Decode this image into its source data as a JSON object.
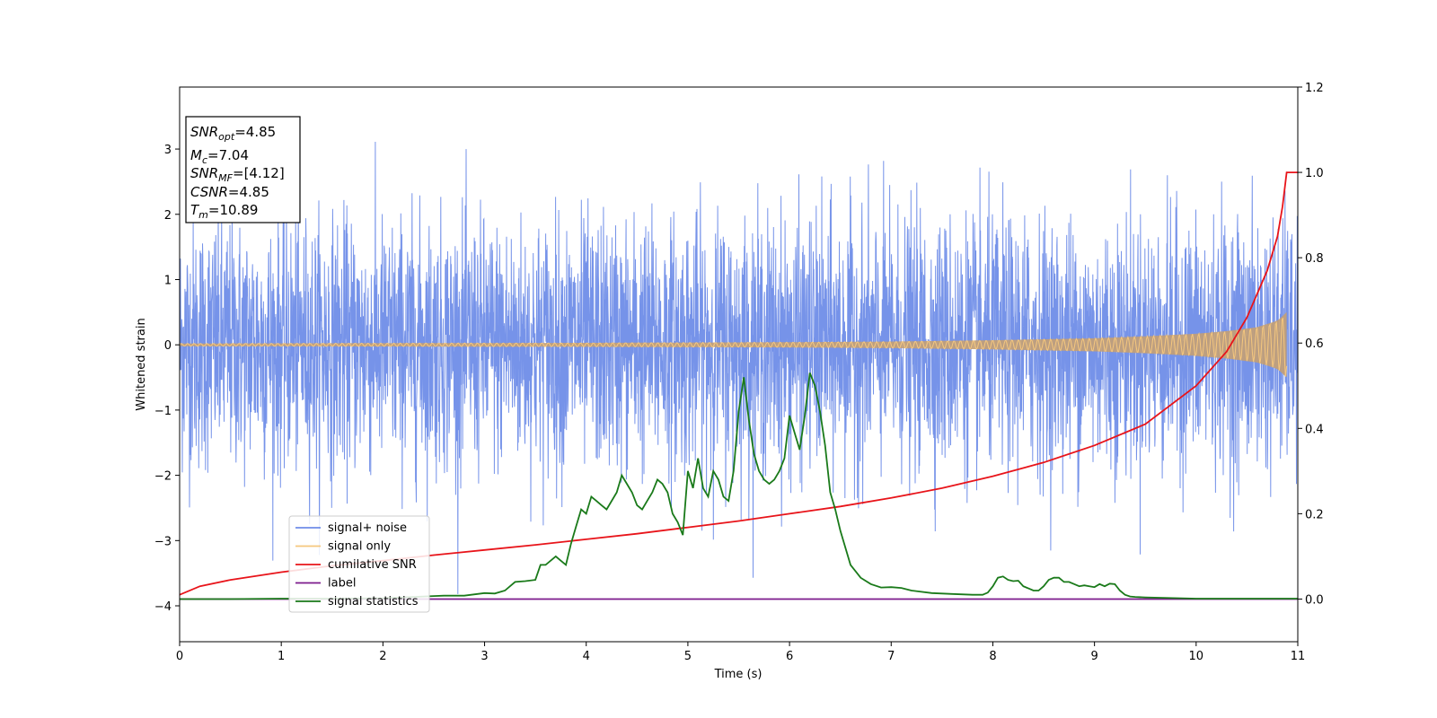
{
  "chart_data": {
    "type": "line",
    "xlabel": "Time (s)",
    "ylabel": "Whitened strain",
    "xlim": [
      0,
      11
    ],
    "ylim": [
      -4.55,
      3.95
    ],
    "y2lim": [
      -0.1,
      1.2
    ],
    "xticks": [
      "0",
      "1",
      "2",
      "3",
      "4",
      "5",
      "6",
      "7",
      "8",
      "9",
      "10",
      "11"
    ],
    "yticks": [
      "3",
      "2",
      "1",
      "0",
      "−1",
      "−2",
      "−3",
      "−4"
    ],
    "y2ticks": [
      "1.2",
      "1.0",
      "0.8",
      "0.6",
      "0.4",
      "0.2",
      "0.0"
    ],
    "legend_position": "lower-left",
    "colors": {
      "noise": "#6f8de8",
      "signal": "#f5c77e",
      "signal_env": "#c4a074",
      "cumulative": "#e8141a",
      "label": "#7b1a8c",
      "statistics": "#1a7a1a"
    },
    "series": [
      {
        "name": "signal+ noise",
        "key": "noise",
        "axis": "left",
        "description_band": [
          -1.8,
          1.8
        ],
        "peak_max": 3.6,
        "peak_min": -4.15
      },
      {
        "name": "signal only",
        "key": "signal",
        "axis": "left",
        "envelope_x": [
          0,
          2,
          4,
          6,
          7,
          8,
          9,
          9.5,
          10,
          10.3,
          10.6,
          10.8,
          10.89
        ],
        "envelope_y": [
          0.02,
          0.025,
          0.03,
          0.04,
          0.05,
          0.07,
          0.1,
          0.13,
          0.17,
          0.21,
          0.27,
          0.37,
          0.5
        ]
      },
      {
        "name": "cumilative SNR",
        "key": "cumulative",
        "axis": "right",
        "x": [
          0,
          0.2,
          0.5,
          1,
          1.5,
          2,
          2.5,
          3,
          3.5,
          4,
          4.5,
          5,
          5.5,
          6,
          6.5,
          7,
          7.5,
          8,
          8.5,
          9,
          9.5,
          10,
          10.3,
          10.5,
          10.7,
          10.8,
          10.85,
          10.89,
          11
        ],
        "y": [
          0.01,
          0.03,
          0.045,
          0.063,
          0.078,
          0.09,
          0.103,
          0.115,
          0.127,
          0.14,
          0.153,
          0.168,
          0.183,
          0.2,
          0.217,
          0.237,
          0.26,
          0.288,
          0.32,
          0.36,
          0.41,
          0.5,
          0.58,
          0.66,
          0.77,
          0.85,
          0.92,
          1.0,
          1.0
        ]
      },
      {
        "name": "label",
        "key": "label",
        "axis": "right",
        "x": [
          0,
          11
        ],
        "y": [
          0,
          0
        ]
      },
      {
        "name": "signal statistics",
        "key": "statistics",
        "axis": "right",
        "x": [
          0,
          0.5,
          1,
          1.5,
          2,
          2.5,
          2.6,
          2.8,
          3.0,
          3.1,
          3.2,
          3.3,
          3.4,
          3.5,
          3.55,
          3.6,
          3.7,
          3.75,
          3.8,
          3.85,
          3.9,
          3.95,
          4.0,
          4.05,
          4.1,
          4.15,
          4.2,
          4.3,
          4.35,
          4.4,
          4.45,
          4.5,
          4.55,
          4.6,
          4.65,
          4.7,
          4.75,
          4.8,
          4.85,
          4.9,
          4.95,
          5.0,
          5.05,
          5.1,
          5.15,
          5.2,
          5.25,
          5.3,
          5.35,
          5.4,
          5.45,
          5.5,
          5.55,
          5.6,
          5.65,
          5.7,
          5.75,
          5.8,
          5.85,
          5.9,
          5.95,
          6.0,
          6.05,
          6.1,
          6.15,
          6.2,
          6.25,
          6.3,
          6.35,
          6.4,
          6.45,
          6.5,
          6.6,
          6.7,
          6.8,
          6.9,
          7.0,
          7.1,
          7.2,
          7.4,
          7.6,
          7.8,
          7.9,
          7.95,
          8.0,
          8.05,
          8.1,
          8.15,
          8.2,
          8.25,
          8.3,
          8.35,
          8.4,
          8.45,
          8.5,
          8.55,
          8.6,
          8.65,
          8.7,
          8.75,
          8.8,
          8.85,
          8.9,
          8.95,
          9.0,
          9.05,
          9.1,
          9.15,
          9.2,
          9.25,
          9.3,
          9.35,
          9.4,
          9.5,
          10,
          11
        ],
        "y": [
          0,
          0,
          0.001,
          0.001,
          0.002,
          0.007,
          0.008,
          0.008,
          0.014,
          0.013,
          0.02,
          0.04,
          0.042,
          0.045,
          0.08,
          0.08,
          0.1,
          0.09,
          0.08,
          0.13,
          0.17,
          0.21,
          0.2,
          0.24,
          0.23,
          0.22,
          0.21,
          0.25,
          0.29,
          0.27,
          0.25,
          0.22,
          0.21,
          0.23,
          0.25,
          0.28,
          0.27,
          0.25,
          0.2,
          0.18,
          0.15,
          0.3,
          0.26,
          0.33,
          0.26,
          0.24,
          0.3,
          0.28,
          0.24,
          0.23,
          0.3,
          0.44,
          0.52,
          0.42,
          0.34,
          0.3,
          0.28,
          0.27,
          0.28,
          0.3,
          0.33,
          0.43,
          0.39,
          0.35,
          0.43,
          0.53,
          0.5,
          0.44,
          0.36,
          0.25,
          0.21,
          0.16,
          0.08,
          0.05,
          0.035,
          0.027,
          0.028,
          0.026,
          0.02,
          0.014,
          0.012,
          0.01,
          0.01,
          0.015,
          0.03,
          0.05,
          0.053,
          0.045,
          0.042,
          0.043,
          0.03,
          0.025,
          0.02,
          0.02,
          0.03,
          0.045,
          0.05,
          0.05,
          0.04,
          0.04,
          0.035,
          0.03,
          0.032,
          0.03,
          0.028,
          0.035,
          0.03,
          0.036,
          0.035,
          0.02,
          0.01,
          0.006,
          0.005,
          0.004,
          0.001,
          0.001
        ]
      }
    ]
  },
  "legend": {
    "items": [
      {
        "label": "signal+ noise",
        "color": "#6f8de8"
      },
      {
        "label": "signal only",
        "color": "#f5c77e"
      },
      {
        "label": "cumilative SNR",
        "color": "#e8141a"
      },
      {
        "label": "label",
        "color": "#7b1a8c"
      },
      {
        "label": "signal statistics",
        "color": "#1a7a1a"
      }
    ]
  },
  "info_box": {
    "snr_opt_base": "SNR",
    "snr_opt_sub": "opt",
    "snr_opt_val": "=4.85",
    "mc_base": "M",
    "mc_sub": "c",
    "mc_val": "=7.04",
    "snr_mf_base": "SNR",
    "snr_mf_sub": "MF",
    "snr_mf_val": "=[4.12]",
    "csnr_base": "CSNR",
    "csnr_val": "=4.85",
    "tm_base": "T",
    "tm_sub": "m",
    "tm_val": "=10.89"
  }
}
